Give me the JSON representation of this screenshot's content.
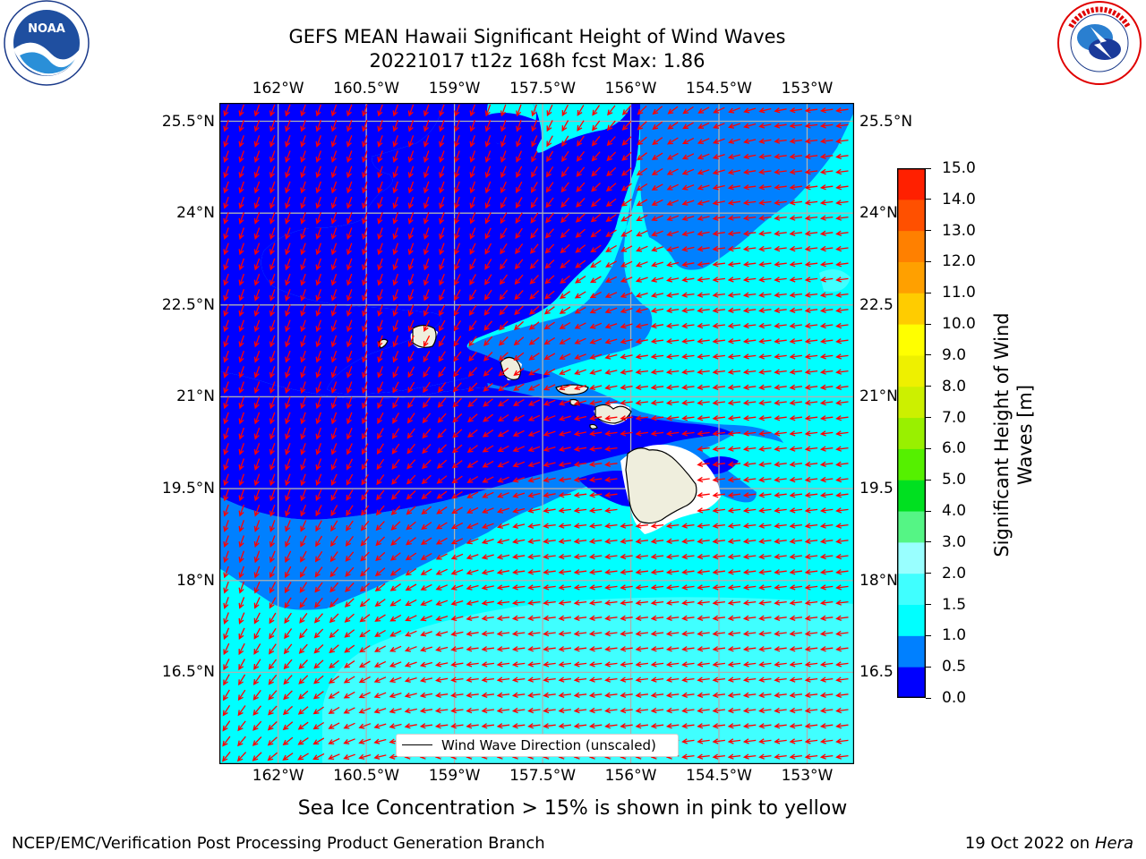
{
  "title": {
    "line1": "GEFS MEAN Hawaii Significant Height of Wind Waves",
    "line2": "20221017 t12z 168h fcst   Max: 1.86"
  },
  "logos": {
    "left": {
      "icon": "noaa-logo",
      "text": "NOAA",
      "ring_text": "NATIONAL OCEANIC AND ATMOSPHERIC ADMINISTRATION · U.S. DEPARTMENT OF COMMERCE"
    },
    "right": {
      "icon": "nws-logo",
      "ring_text": "NATIONAL WEATHER SERVICE"
    }
  },
  "map": {
    "lon_range": [
      -163.0,
      -152.2
    ],
    "lat_range": [
      15.0,
      25.8
    ],
    "lon_ticks": [
      {
        "value": -162.0,
        "label": "162°W"
      },
      {
        "value": -160.5,
        "label": "160.5°W"
      },
      {
        "value": -159.0,
        "label": "159°W"
      },
      {
        "value": -157.5,
        "label": "157.5°W"
      },
      {
        "value": -156.0,
        "label": "156°W"
      },
      {
        "value": -154.5,
        "label": "154.5°W"
      },
      {
        "value": -153.0,
        "label": "153°W"
      }
    ],
    "lat_ticks": [
      {
        "value": 25.5,
        "label": "25.5°N"
      },
      {
        "value": 24.0,
        "label": "24°N"
      },
      {
        "value": 22.5,
        "label": "22.5°N"
      },
      {
        "value": 21.0,
        "label": "21°N"
      },
      {
        "value": 19.5,
        "label": "19.5°N"
      },
      {
        "value": 18.0,
        "label": "18°N"
      },
      {
        "value": 16.5,
        "label": "16.5°N"
      }
    ],
    "right_lat_labels": [
      "25.5°N",
      "24°N",
      "22.5",
      "21°N",
      "19.5",
      "18°N",
      "16.5"
    ],
    "grid": true,
    "colors": {
      "band_0_0_5": "#0000ff",
      "band_0_5_1_0": "#0080ff",
      "band_1_0_1_5": "#00ffff",
      "band_1_5_2_0": "#40ffff",
      "land": "#efeedd",
      "arrows": "#ff0000",
      "grid": "#b0b0b0"
    },
    "arrow_direction": "from east-northeast in the east, from north-northeast in the west",
    "legend": {
      "label": "Wind Wave Direction (unscaled)",
      "placement": "bottom-center"
    }
  },
  "colorbar": {
    "title_line1": "Significant Height of Wind",
    "title_line2": "Waves [m]",
    "levels": [
      "0.0",
      "0.5",
      "1.0",
      "1.5",
      "2.0",
      "3.0",
      "4.0",
      "5.0",
      "6.0",
      "7.0",
      "8.0",
      "9.0",
      "10.0",
      "11.0",
      "12.0",
      "13.0",
      "14.0",
      "15.0"
    ],
    "colors": [
      "#0000ff",
      "#0080ff",
      "#00ffff",
      "#40ffff",
      "#99ffff",
      "#55f585",
      "#00e020",
      "#55f000",
      "#99f000",
      "#ccf000",
      "#eef000",
      "#ffff00",
      "#ffcc00",
      "#ffa000",
      "#ff8000",
      "#ff5000",
      "#ff2000"
    ]
  },
  "subtitle": "Sea Ice Concentration > 15% is shown in pink to yellow",
  "footer": {
    "left": "NCEP/EMC/Verification Post Processing Product Generation Branch",
    "right_prefix": "19 Oct 2022 on ",
    "right_host": "Hera"
  }
}
